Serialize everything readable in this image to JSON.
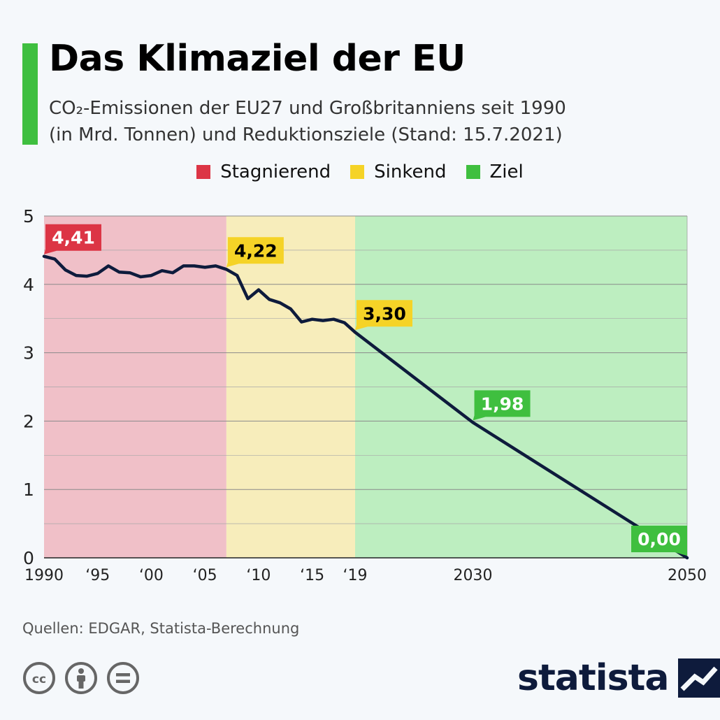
{
  "header": {
    "title": "Das Klimaziel der EU",
    "subtitle_line1": "CO₂-Emissionen der EU27 und Großbritanniens seit 1990",
    "subtitle_line2": "(in Mrd. Tonnen) und Reduktionsziele (Stand: 15.7.2021)"
  },
  "legend": {
    "items": [
      {
        "label": "Stagnierend",
        "color": "#dc3545"
      },
      {
        "label": "Sinkend",
        "color": "#f5d327"
      },
      {
        "label": "Ziel",
        "color": "#3fbf3f"
      }
    ]
  },
  "chart_data": {
    "type": "line",
    "ylim": [
      0,
      5
    ],
    "yticks": [
      "0",
      "1",
      "2",
      "3",
      "4",
      "5"
    ],
    "xlim": [
      1990,
      2050
    ],
    "xticks": [
      {
        "value": 1990,
        "label": "1990"
      },
      {
        "value": 1995,
        "label": "‘95"
      },
      {
        "value": 2000,
        "label": "‘00"
      },
      {
        "value": 2005,
        "label": "‘05"
      },
      {
        "value": 2010,
        "label": "‘10"
      },
      {
        "value": 2015,
        "label": "‘15"
      },
      {
        "value": 2019,
        "label": "‘19"
      },
      {
        "value": 2030,
        "label": "2030"
      },
      {
        "value": 2050,
        "label": "2050"
      }
    ],
    "regions": [
      {
        "label": "Stagnierend",
        "from": 1990,
        "to": 2007,
        "color": "#f0c0c8"
      },
      {
        "label": "Sinkend",
        "from": 2007,
        "to": 2019,
        "color": "#f7edbb"
      },
      {
        "label": "Ziel",
        "from": 2019,
        "to": 2050,
        "color": "#bdeec0"
      }
    ],
    "series": [
      {
        "x": [
          1990,
          1991,
          1992,
          1993,
          1994,
          1995,
          1996,
          1997,
          1998,
          1999,
          2000,
          2001,
          2002,
          2003,
          2004,
          2005,
          2006,
          2007,
          2008,
          2009,
          2010,
          2011,
          2012,
          2013,
          2014,
          2015,
          2016,
          2017,
          2018,
          2019,
          2030,
          2050
        ],
        "y": [
          4.41,
          4.37,
          4.21,
          4.13,
          4.12,
          4.16,
          4.27,
          4.18,
          4.17,
          4.11,
          4.13,
          4.2,
          4.17,
          4.27,
          4.27,
          4.25,
          4.27,
          4.22,
          4.13,
          3.79,
          3.92,
          3.78,
          3.73,
          3.64,
          3.45,
          3.49,
          3.47,
          3.49,
          3.44,
          3.3,
          1.98,
          0.0
        ]
      }
    ],
    "annotations": [
      {
        "x": 1990,
        "y": 4.41,
        "label": "4,41",
        "color": "#dc3545",
        "text_color": "#ffffff"
      },
      {
        "x": 2007,
        "y": 4.22,
        "label": "4,22",
        "color": "#f5d327",
        "text_color": "#000000"
      },
      {
        "x": 2019,
        "y": 3.3,
        "label": "3,30",
        "color": "#f5d327",
        "text_color": "#000000"
      },
      {
        "x": 2030,
        "y": 1.98,
        "label": "1,98",
        "color": "#3fbf3f",
        "text_color": "#ffffff"
      },
      {
        "x": 2050,
        "y": 0.0,
        "label": "0,00",
        "color": "#3fbf3f",
        "text_color": "#ffffff"
      }
    ],
    "line_color": "#0e1b3c"
  },
  "footer": {
    "source": "Quellen: EDGAR, Statista-Berechnung",
    "logo_text": "statista",
    "license_icons": [
      "cc-icon",
      "by-icon",
      "nd-icon"
    ]
  }
}
